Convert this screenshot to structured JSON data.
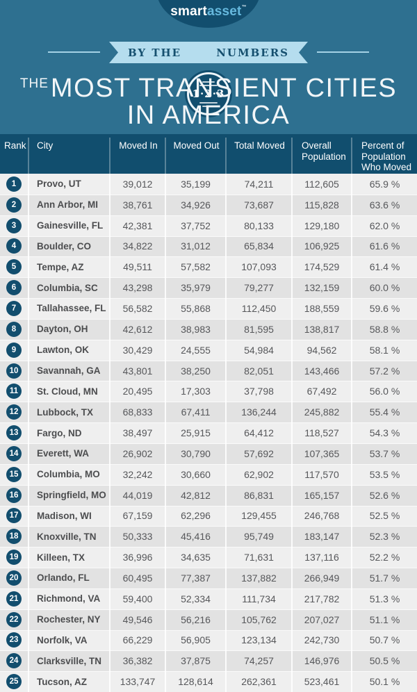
{
  "logo": {
    "smart": "smart",
    "asset": "asset",
    "tm": "™"
  },
  "banner": {
    "left": "BY THE",
    "badge": "1·2·3",
    "right": "NUMBERS"
  },
  "title": {
    "prefix": "THE",
    "line1": "MOST TRANSIENT CITIES",
    "line2": "IN AMERICA"
  },
  "colors": {
    "background": "#2e7090",
    "dark_blue": "#114e6e",
    "ribbon_blue": "#b5ddee",
    "logo_accent": "#66b9de",
    "row_light": "#efefef",
    "row_dark": "#e2e2e2",
    "body_text": "#56575a"
  },
  "chart_data": {
    "type": "table",
    "title": "The Most Transient Cities in America",
    "columns": [
      "Rank",
      "City",
      "Moved In",
      "Moved Out",
      "Total Moved",
      "Overall Population",
      "Percent of Population Who Moved"
    ],
    "rows": [
      {
        "rank": 1,
        "city": "Provo, UT",
        "moved_in": "39,012",
        "moved_out": "35,199",
        "total_moved": "74,211",
        "overall_population": "112,605",
        "percent_who_moved": "65.9 %"
      },
      {
        "rank": 2,
        "city": "Ann Arbor, MI",
        "moved_in": "38,761",
        "moved_out": "34,926",
        "total_moved": "73,687",
        "overall_population": "115,828",
        "percent_who_moved": "63.6 %"
      },
      {
        "rank": 3,
        "city": "Gainesville, FL",
        "moved_in": "42,381",
        "moved_out": "37,752",
        "total_moved": "80,133",
        "overall_population": "129,180",
        "percent_who_moved": "62.0 %"
      },
      {
        "rank": 4,
        "city": "Boulder, CO",
        "moved_in": "34,822",
        "moved_out": "31,012",
        "total_moved": "65,834",
        "overall_population": "106,925",
        "percent_who_moved": "61.6 %"
      },
      {
        "rank": 5,
        "city": "Tempe, AZ",
        "moved_in": "49,511",
        "moved_out": "57,582",
        "total_moved": "107,093",
        "overall_population": "174,529",
        "percent_who_moved": "61.4 %"
      },
      {
        "rank": 6,
        "city": "Columbia, SC",
        "moved_in": "43,298",
        "moved_out": "35,979",
        "total_moved": "79,277",
        "overall_population": "132,159",
        "percent_who_moved": "60.0 %"
      },
      {
        "rank": 7,
        "city": "Tallahassee, FL",
        "moved_in": "56,582",
        "moved_out": "55,868",
        "total_moved": "112,450",
        "overall_population": "188,559",
        "percent_who_moved": "59.6 %"
      },
      {
        "rank": 8,
        "city": "Dayton, OH",
        "moved_in": "42,612",
        "moved_out": "38,983",
        "total_moved": "81,595",
        "overall_population": "138,817",
        "percent_who_moved": "58.8 %"
      },
      {
        "rank": 9,
        "city": "Lawton, OK",
        "moved_in": "30,429",
        "moved_out": "24,555",
        "total_moved": "54,984",
        "overall_population": "94,562",
        "percent_who_moved": "58.1 %"
      },
      {
        "rank": 10,
        "city": "Savannah, GA",
        "moved_in": "43,801",
        "moved_out": "38,250",
        "total_moved": "82,051",
        "overall_population": "143,466",
        "percent_who_moved": "57.2 %"
      },
      {
        "rank": 11,
        "city": "St. Cloud, MN",
        "moved_in": "20,495",
        "moved_out": "17,303",
        "total_moved": "37,798",
        "overall_population": "67,492",
        "percent_who_moved": "56.0 %"
      },
      {
        "rank": 12,
        "city": "Lubbock, TX",
        "moved_in": "68,833",
        "moved_out": "67,411",
        "total_moved": "136,244",
        "overall_population": "245,882",
        "percent_who_moved": "55.4 %"
      },
      {
        "rank": 13,
        "city": "Fargo, ND",
        "moved_in": "38,497",
        "moved_out": "25,915",
        "total_moved": "64,412",
        "overall_population": "118,527",
        "percent_who_moved": "54.3 %"
      },
      {
        "rank": 14,
        "city": "Everett, WA",
        "moved_in": "26,902",
        "moved_out": "30,790",
        "total_moved": "57,692",
        "overall_population": "107,365",
        "percent_who_moved": "53.7 %"
      },
      {
        "rank": 15,
        "city": "Columbia, MO",
        "moved_in": "32,242",
        "moved_out": "30,660",
        "total_moved": "62,902",
        "overall_population": "117,570",
        "percent_who_moved": "53.5 %"
      },
      {
        "rank": 16,
        "city": "Springfield, MO",
        "moved_in": "44,019",
        "moved_out": "42,812",
        "total_moved": "86,831",
        "overall_population": "165,157",
        "percent_who_moved": "52.6 %"
      },
      {
        "rank": 17,
        "city": "Madison, WI",
        "moved_in": "67,159",
        "moved_out": "62,296",
        "total_moved": "129,455",
        "overall_population": "246,768",
        "percent_who_moved": "52.5 %"
      },
      {
        "rank": 18,
        "city": "Knoxville, TN",
        "moved_in": "50,333",
        "moved_out": "45,416",
        "total_moved": "95,749",
        "overall_population": "183,147",
        "percent_who_moved": "52.3 %"
      },
      {
        "rank": 19,
        "city": "Killeen, TX",
        "moved_in": "36,996",
        "moved_out": "34,635",
        "total_moved": "71,631",
        "overall_population": "137,116",
        "percent_who_moved": "52.2 %"
      },
      {
        "rank": 20,
        "city": "Orlando, FL",
        "moved_in": "60,495",
        "moved_out": "77,387",
        "total_moved": "137,882",
        "overall_population": "266,949",
        "percent_who_moved": "51.7 %"
      },
      {
        "rank": 21,
        "city": "Richmond, VA",
        "moved_in": "59,400",
        "moved_out": "52,334",
        "total_moved": "111,734",
        "overall_population": "217,782",
        "percent_who_moved": "51.3 %"
      },
      {
        "rank": 22,
        "city": "Rochester, NY",
        "moved_in": "49,546",
        "moved_out": "56,216",
        "total_moved": "105,762",
        "overall_population": "207,027",
        "percent_who_moved": "51.1 %"
      },
      {
        "rank": 23,
        "city": "Norfolk, VA",
        "moved_in": "66,229",
        "moved_out": "56,905",
        "total_moved": "123,134",
        "overall_population": "242,730",
        "percent_who_moved": "50.7 %"
      },
      {
        "rank": 24,
        "city": "Clarksville, TN",
        "moved_in": "36,382",
        "moved_out": "37,875",
        "total_moved": "74,257",
        "overall_population": "146,976",
        "percent_who_moved": "50.5 %"
      },
      {
        "rank": 25,
        "city": "Tucson, AZ",
        "moved_in": "133,747",
        "moved_out": "128,614",
        "total_moved": "262,361",
        "overall_population": "523,461",
        "percent_who_moved": "50.1 %"
      }
    ]
  }
}
